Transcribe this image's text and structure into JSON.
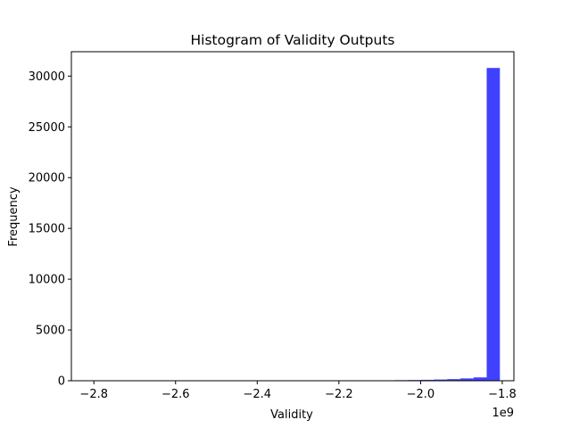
{
  "chart_data": {
    "type": "bar",
    "title": "Histogram of Validity Outputs",
    "xlabel": "Validity",
    "ylabel": "Frequency",
    "x_offset_label": "1e9",
    "bar_color": "#0000ff",
    "bar_opacity": 0.75,
    "grid": false,
    "legend": "none",
    "xlim": [
      -2.8551,
      -1.7715
    ],
    "ylim": [
      0,
      32400
    ],
    "x_ticks": [
      -2.8,
      -2.6,
      -2.4,
      -2.2,
      -2.0,
      -1.8
    ],
    "x_tick_labels": [
      "−2.8",
      "−2.6",
      "−2.4",
      "−2.2",
      "−2.0",
      "−1.8"
    ],
    "y_ticks": [
      0,
      5000,
      10000,
      15000,
      20000,
      25000,
      30000
    ],
    "y_tick_labels": [
      "0",
      "5000",
      "10000",
      "15000",
      "20000",
      "25000",
      "30000"
    ],
    "bin_edges": [
      -2.8058,
      -2.7735,
      -2.7413,
      -2.709,
      -2.6768,
      -2.6445,
      -2.6122,
      -2.58,
      -2.5477,
      -2.5155,
      -2.4832,
      -2.451,
      -2.4187,
      -2.3865,
      -2.3542,
      -2.3219,
      -2.2897,
      -2.2574,
      -2.2252,
      -2.1929,
      -2.1607,
      -2.1284,
      -2.0961,
      -2.0639,
      -2.0316,
      -1.9994,
      -1.9671,
      -1.9349,
      -1.9026,
      -1.8703,
      -1.8381,
      -1.8058
    ],
    "values": [
      2,
      1,
      1,
      1,
      1,
      2,
      1,
      2,
      2,
      2,
      3,
      3,
      4,
      4,
      5,
      6,
      8,
      10,
      12,
      16,
      22,
      30,
      40,
      55,
      70,
      90,
      120,
      160,
      230,
      330,
      30800
    ]
  }
}
